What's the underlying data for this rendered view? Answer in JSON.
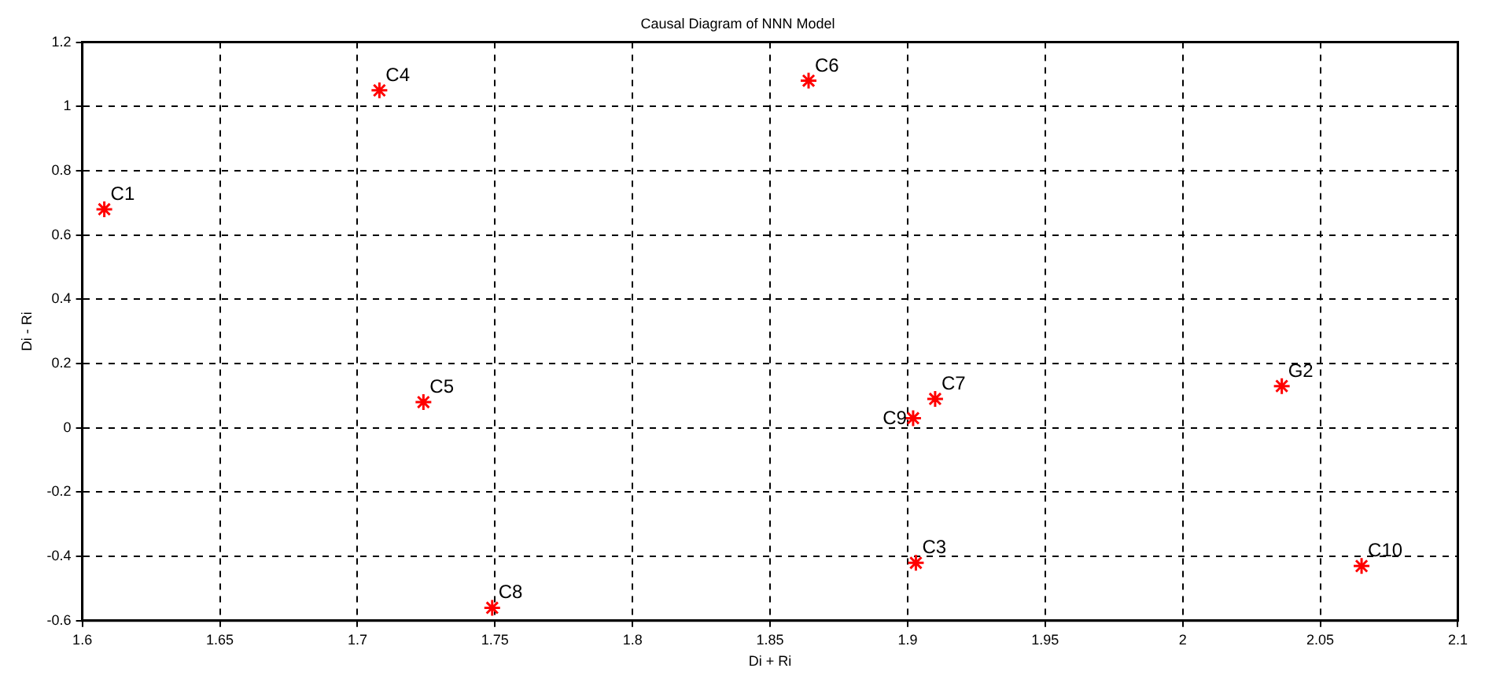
{
  "chart_data": {
    "type": "scatter",
    "title": "Causal Diagram of NNN Model",
    "xlabel": "Di + Ri",
    "ylabel": "Di - Ri",
    "x": [
      1.608,
      1.708,
      1.864,
      1.724,
      1.749,
      1.902,
      1.91,
      1.903,
      2.036,
      2.065
    ],
    "series": [
      {
        "color": "#ff0000",
        "values": [
          0.68,
          1.05,
          1.08,
          0.08,
          -0.56,
          0.03,
          0.09,
          -0.42,
          0.13,
          -0.43
        ]
      }
    ],
    "annotations": [
      {
        "text": "C1",
        "x": 1.608,
        "y": 0.68
      },
      {
        "text": "C4",
        "x": 1.708,
        "y": 1.05
      },
      {
        "text": "C6",
        "x": 1.864,
        "y": 1.08
      },
      {
        "text": "C5",
        "x": 1.724,
        "y": 0.08
      },
      {
        "text": "C8",
        "x": 1.749,
        "y": -0.56
      },
      {
        "text": "C9",
        "x": 1.902,
        "y": 0.03
      },
      {
        "text": "C7",
        "x": 1.91,
        "y": 0.09
      },
      {
        "text": "C3",
        "x": 1.903,
        "y": -0.42
      },
      {
        "text": "G2",
        "x": 2.036,
        "y": 0.13
      },
      {
        "text": "C10",
        "x": 2.065,
        "y": -0.43
      }
    ],
    "xlim": [
      1.6,
      2.1
    ],
    "xticks": [
      1.6,
      1.65,
      1.7,
      1.75,
      1.8,
      1.85,
      1.9,
      1.95,
      2,
      2.05,
      2.1
    ],
    "ylim": [
      -0.6,
      1.2
    ],
    "yticks": [
      -0.6,
      -0.4,
      -0.2,
      0,
      0.2,
      0.4,
      0.6,
      0.8,
      1,
      1.2
    ],
    "grid": true,
    "marker": "cross",
    "legend": false
  }
}
